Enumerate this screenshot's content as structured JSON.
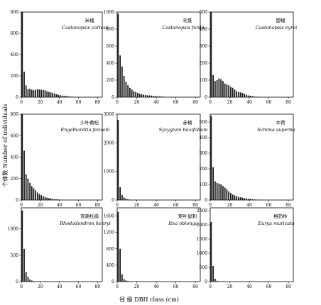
{
  "figure": {
    "ylabel": "个体数 Number of individuals",
    "xlabel": "径 级 DBH class (cm)"
  },
  "chart_data": [
    {
      "type": "bar",
      "title_cn": "米槠",
      "title_latin": "Castanopsis carlesii",
      "xlim": [
        0,
        85
      ],
      "ylim": [
        0,
        800
      ],
      "xticks": [
        0,
        20,
        40,
        60,
        80
      ],
      "yticks": [
        0,
        200,
        400,
        600,
        800
      ],
      "x": [
        1,
        3,
        5,
        7,
        9,
        11,
        13,
        15,
        17,
        19,
        21,
        23,
        25,
        27,
        29,
        31,
        33,
        35,
        37,
        39,
        41,
        43,
        45,
        47,
        49,
        51,
        53,
        55,
        57,
        59,
        61,
        63
      ],
      "values": [
        800,
        240,
        110,
        75,
        80,
        70,
        65,
        70,
        75,
        72,
        70,
        68,
        65,
        55,
        50,
        45,
        40,
        35,
        28,
        22,
        18,
        15,
        12,
        10,
        8,
        6,
        5,
        4,
        3,
        2,
        2,
        1
      ]
    },
    {
      "type": "bar",
      "title_cn": "毛锥",
      "title_latin": "Castanopsis fordii",
      "xlim": [
        0,
        85
      ],
      "ylim": [
        0,
        1000
      ],
      "xticks": [
        0,
        20,
        40,
        60,
        80
      ],
      "yticks": [
        0,
        200,
        400,
        600,
        800,
        1000
      ],
      "x": [
        1,
        3,
        5,
        7,
        9,
        11,
        13,
        15,
        17,
        19,
        21,
        23,
        25,
        27,
        29,
        31,
        33,
        35,
        37,
        39,
        41,
        43,
        45,
        47,
        49,
        51,
        53,
        55,
        57,
        59,
        61,
        63,
        65,
        67,
        69
      ],
      "values": [
        980,
        490,
        360,
        250,
        180,
        140,
        110,
        90,
        70,
        60,
        50,
        40,
        35,
        30,
        25,
        22,
        20,
        18,
        15,
        12,
        10,
        9,
        8,
        6,
        5,
        4,
        3,
        3,
        2,
        2,
        1,
        1,
        1,
        1,
        1
      ]
    },
    {
      "type": "bar",
      "title_cn": "甜槠",
      "title_latin": "Castanopsis eyrei",
      "xlim": [
        0,
        85
      ],
      "ylim": [
        0,
        500
      ],
      "xticks": [
        0,
        20,
        40,
        60,
        80
      ],
      "yticks": [
        0,
        100,
        200,
        300,
        400,
        500
      ],
      "x": [
        1,
        3,
        5,
        7,
        9,
        11,
        13,
        15,
        17,
        19,
        21,
        23,
        25,
        27,
        29,
        31,
        33,
        35,
        37,
        39,
        41,
        43,
        45,
        47,
        49,
        51
      ],
      "values": [
        500,
        130,
        95,
        100,
        110,
        105,
        95,
        80,
        75,
        70,
        60,
        55,
        45,
        35,
        30,
        28,
        25,
        20,
        15,
        10,
        8,
        6,
        4,
        3,
        2,
        1
      ]
    },
    {
      "type": "bar",
      "title_cn": "少叶黄杞",
      "title_latin": "Engelhardtia fenzelii",
      "xlim": [
        0,
        85
      ],
      "ylim": [
        0,
        800
      ],
      "xticks": [
        0,
        20,
        40,
        60,
        80
      ],
      "yticks": [
        0,
        200,
        400,
        600,
        800
      ],
      "x": [
        1,
        3,
        5,
        7,
        9,
        11,
        13,
        15,
        17,
        19,
        21,
        23,
        25,
        27,
        29,
        31,
        33,
        35,
        37,
        39,
        41,
        43,
        45,
        47
      ],
      "values": [
        800,
        460,
        240,
        200,
        160,
        130,
        110,
        90,
        70,
        55,
        45,
        35,
        28,
        22,
        18,
        14,
        10,
        8,
        6,
        5,
        4,
        3,
        2,
        1
      ]
    },
    {
      "type": "bar",
      "title_cn": "赤楠",
      "title_latin": "Syzygium buxifolium",
      "xlim": [
        0,
        85
      ],
      "ylim": [
        0,
        3000
      ],
      "xticks": [
        0,
        20,
        40,
        60,
        80
      ],
      "yticks": [
        0,
        1000,
        2000,
        3000
      ],
      "x": [
        1,
        3,
        5,
        7,
        9,
        11,
        13,
        15
      ],
      "values": [
        2800,
        450,
        180,
        90,
        50,
        25,
        10,
        5
      ]
    },
    {
      "type": "bar",
      "title_cn": "木荷",
      "title_latin": "Schima superba",
      "xlim": [
        0,
        85
      ],
      "ylim": [
        0,
        550
      ],
      "xticks": [
        0,
        20,
        40,
        60,
        80
      ],
      "yticks": [
        0,
        100,
        200,
        300,
        400,
        500
      ],
      "x": [
        1,
        3,
        5,
        7,
        9,
        11,
        13,
        15,
        17,
        19,
        21,
        23,
        25,
        27,
        29,
        31,
        33,
        35,
        37,
        39,
        41,
        43,
        45,
        47,
        49,
        51,
        53
      ],
      "values": [
        540,
        210,
        120,
        110,
        105,
        100,
        90,
        80,
        70,
        55,
        45,
        35,
        30,
        25,
        20,
        18,
        15,
        12,
        10,
        8,
        7,
        5,
        4,
        3,
        2,
        2,
        1
      ]
    },
    {
      "type": "bar",
      "title_cn": "弯蒴杜鹃",
      "title_latin": "Rhododendron henryi",
      "xlim": [
        0,
        85
      ],
      "ylim": [
        0,
        1400
      ],
      "xticks": [
        0,
        20,
        40,
        60,
        80
      ],
      "yticks": [
        0,
        500,
        1000,
        1500
      ],
      "x": [
        1,
        3,
        5,
        7,
        9,
        11,
        13,
        15
      ],
      "values": [
        1350,
        620,
        180,
        90,
        40,
        20,
        10,
        5
      ]
    },
    {
      "type": "bar",
      "title_cn": "矩叶鼠刺",
      "title_latin": "Itea oblonga",
      "xlim": [
        0,
        85
      ],
      "ylim": [
        0,
        1800
      ],
      "xticks": [
        0,
        20,
        40,
        60,
        80
      ],
      "yticks": [
        0,
        400,
        800,
        1200,
        1600
      ],
      "x": [
        1,
        3,
        5,
        7,
        9,
        11,
        13,
        15
      ],
      "values": [
        1700,
        800,
        180,
        60,
        30,
        15,
        8,
        4
      ]
    },
    {
      "type": "bar",
      "title_cn": "格药柃",
      "title_latin": "Eurya muricata",
      "xlim": [
        0,
        85
      ],
      "ylim": [
        0,
        2600
      ],
      "xticks": [
        0,
        20,
        40,
        60,
        80
      ],
      "yticks": [
        0,
        500,
        1000,
        1500,
        2000,
        2500
      ],
      "x": [
        1,
        3,
        5,
        7,
        9,
        11
      ],
      "values": [
        2100,
        550,
        100,
        30,
        10,
        5
      ]
    }
  ]
}
